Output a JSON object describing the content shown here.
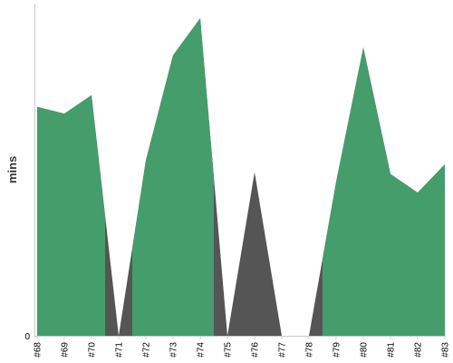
{
  "chart_data": {
    "type": "area",
    "title": "",
    "xlabel": "",
    "ylabel": "mins",
    "ylim": [
      0,
      340
    ],
    "y_ticks": [
      {
        "value": 0,
        "label": "0"
      }
    ],
    "categories": [
      "#68",
      "#69",
      "#70",
      "#71",
      "#72",
      "#73",
      "#74",
      "#75",
      "#76",
      "#77",
      "#78",
      "#79",
      "#80",
      "#81",
      "#82",
      "#83"
    ],
    "series": [
      {
        "key": "background",
        "color": "#555555",
        "values": [
          235,
          228,
          247,
          0,
          180,
          288,
          326,
          0,
          168,
          0,
          0,
          158,
          296,
          166,
          147,
          176
        ]
      },
      {
        "key": "foreground",
        "color": "#459d6c",
        "values": [
          235,
          228,
          247,
          0,
          180,
          288,
          326,
          0,
          168,
          0,
          0,
          158,
          296,
          166,
          147,
          176
        ],
        "gaps": [
          [
            2.5,
            3.5
          ],
          [
            6.5,
            7.5
          ],
          [
            7.5,
            8.5
          ],
          [
            8.5,
            10.5
          ]
        ]
      }
    ],
    "grid": false,
    "legend": "none"
  }
}
